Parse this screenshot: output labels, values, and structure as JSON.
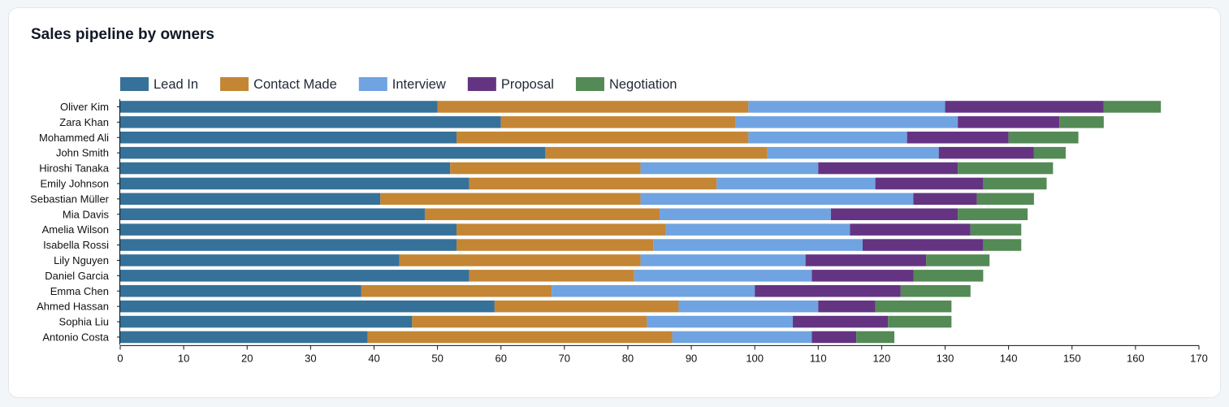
{
  "card": {
    "title": "Sales pipeline by owners"
  },
  "chart_data": {
    "type": "bar",
    "orientation": "horizontal",
    "stacked": true,
    "title": "Sales pipeline by owners",
    "xlabel": "",
    "ylabel": "",
    "xlim": [
      0,
      170
    ],
    "xticks": [
      0,
      10,
      20,
      30,
      40,
      50,
      60,
      70,
      80,
      90,
      100,
      110,
      120,
      130,
      140,
      150,
      160,
      170
    ],
    "grid": false,
    "legend_position": "top-left",
    "categories": [
      "Oliver Kim",
      "Zara Khan",
      "Mohammed Ali",
      "John Smith",
      "Hiroshi Tanaka",
      "Emily Johnson",
      "Sebastian Müller",
      "Mia Davis",
      "Amelia Wilson",
      "Isabella Rossi",
      "Lily Nguyen",
      "Daniel Garcia",
      "Emma Chen",
      "Ahmed Hassan",
      "Sophia Liu",
      "Antonio Costa"
    ],
    "series": [
      {
        "name": "Lead In",
        "color": "#367199",
        "values": [
          50,
          60,
          53,
          67,
          52,
          55,
          41,
          48,
          53,
          53,
          44,
          55,
          38,
          59,
          46,
          39
        ]
      },
      {
        "name": "Contact Made",
        "color": "#c48634",
        "values": [
          49,
          37,
          46,
          35,
          30,
          39,
          41,
          37,
          33,
          31,
          38,
          26,
          30,
          29,
          37,
          48
        ]
      },
      {
        "name": "Interview",
        "color": "#70a3e1",
        "values": [
          31,
          35,
          25,
          27,
          28,
          25,
          43,
          27,
          29,
          33,
          26,
          28,
          32,
          22,
          23,
          22
        ]
      },
      {
        "name": "Proposal",
        "color": "#643482",
        "values": [
          25,
          16,
          16,
          15,
          22,
          17,
          10,
          20,
          19,
          19,
          19,
          16,
          23,
          9,
          15,
          7
        ]
      },
      {
        "name": "Negotiation",
        "color": "#548a55",
        "values": [
          9,
          7,
          11,
          5,
          15,
          10,
          9,
          11,
          8,
          6,
          10,
          11,
          11,
          12,
          10,
          6
        ]
      }
    ]
  }
}
